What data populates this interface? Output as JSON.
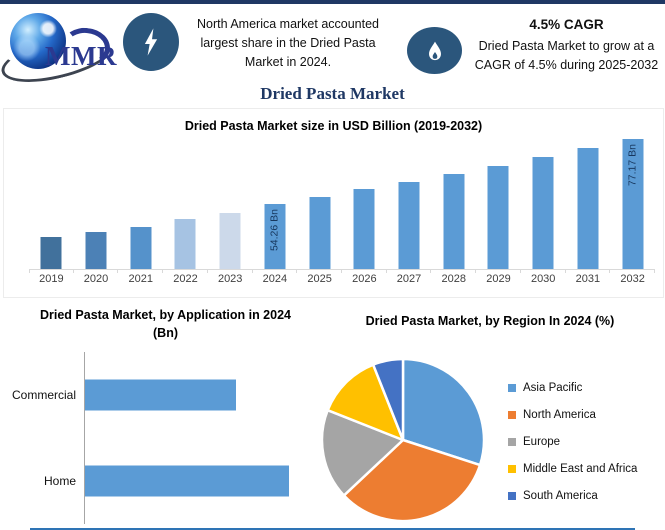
{
  "brand": {
    "logo_text": "MMR",
    "logo_color": "#2b3990"
  },
  "header": {
    "left_note": "North America market accounted largest share in the Dried Pasta Market in 2024.",
    "cagr_title": "4.5% CAGR",
    "cagr_note": "Dried Pasta Market to grow at a CAGR of 4.5% during 2025-2032",
    "icons": {
      "left_badge": "lightning-bolt",
      "right_badge": "flame"
    },
    "badge_color": "#2b567c"
  },
  "main_title": "Dried Pasta Market",
  "accent_colors": {
    "navy": "#1f3864",
    "primary_blue": "#5b9bd5",
    "bottom_rule_blue": "#2e74b5"
  },
  "chart_data": [
    {
      "type": "bar",
      "title": "Dried Pasta Market size in USD Billion (2019-2032)",
      "categories": [
        "2019",
        "2020",
        "2021",
        "2022",
        "2023",
        "2024",
        "2025",
        "2026",
        "2027",
        "2028",
        "2029",
        "2030",
        "2031",
        "2032"
      ],
      "values": [
        42.2,
        44.0,
        46.0,
        48.6,
        51.0,
        54.26,
        56.7,
        59.25,
        61.92,
        64.71,
        67.62,
        70.66,
        73.84,
        77.17
      ],
      "bar_labels": {
        "5": "54.26 Bn",
        "13": "77.17 Bn"
      },
      "bar_colors": [
        "#41719C",
        "#4C81B6",
        "#5592CB",
        "#A6C3E3",
        "#CCD9EA",
        "#5B9BD5",
        "#5B9BD5",
        "#5B9BD5",
        "#5B9BD5",
        "#5B9BD5",
        "#5B9BD5",
        "#5B9BD5",
        "#5B9BD5",
        "#5B9BD5"
      ],
      "ylabel": "",
      "xlabel": "",
      "ylim": [
        31,
        80
      ],
      "baseline_value": 31,
      "grid": false,
      "note": "values for 2019-2023 estimated from bar heights; 2024 and 2032 labeled on chart; 2025-2031 follow 4.5% CAGR"
    },
    {
      "type": "bar",
      "orientation": "horizontal",
      "title": "Dried Pasta Market, by Application in 2024 (Bn)",
      "categories": [
        "Commercial",
        "Home"
      ],
      "values": [
        23.1,
        31.2
      ],
      "xlim": [
        0,
        36
      ],
      "bar_color": "#5B9BD5",
      "grid": false,
      "note": "no value labels shown; lengths estimated from pixels"
    },
    {
      "type": "pie",
      "title": "Dried Pasta Market, by Region In 2024 (%)",
      "slices": [
        {
          "label": "Asia Pacific",
          "value": 30,
          "color": "#5B9BD5"
        },
        {
          "label": "North America",
          "value": 33,
          "color": "#ED7D31"
        },
        {
          "label": "Europe",
          "value": 18,
          "color": "#A5A5A5"
        },
        {
          "label": "Middle East and Africa",
          "value": 13,
          "color": "#FFC000"
        },
        {
          "label": "South America",
          "value": 6,
          "color": "#4472C4"
        }
      ],
      "start_angle_deg": 0,
      "legend_position": "right",
      "note": "percent values estimated from slice angles"
    }
  ]
}
